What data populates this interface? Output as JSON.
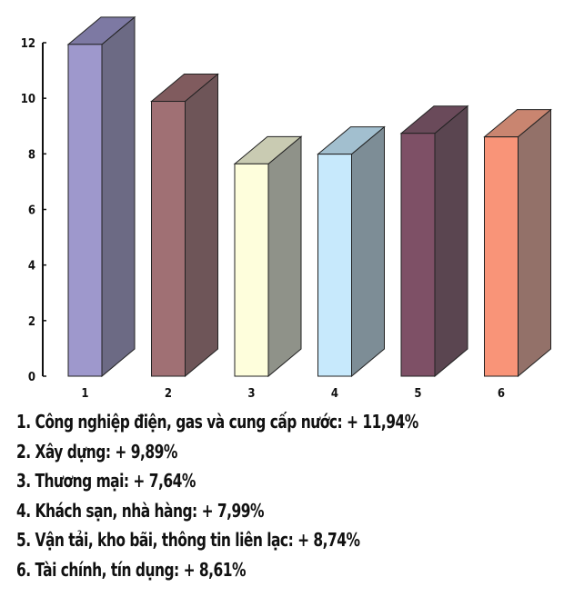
{
  "chart_data": {
    "type": "bar",
    "categories": [
      "1",
      "2",
      "3",
      "4",
      "5",
      "6"
    ],
    "values": [
      11.94,
      9.89,
      7.64,
      7.99,
      8.74,
      8.61
    ],
    "ylim": [
      0,
      12
    ],
    "yticks": [
      "0",
      "2",
      "4",
      "6",
      "8",
      "10",
      "12"
    ],
    "grid": false,
    "colors": [
      {
        "front": "#9e98cc",
        "side": "#6c6a84",
        "top": "#7d79a3"
      },
      {
        "front": "#a07074",
        "side": "#6e5558",
        "top": "#805b5e"
      },
      {
        "front": "#fefedc",
        "side": "#8f9289",
        "top": "#c9cbb2"
      },
      {
        "front": "#c7e9fc",
        "side": "#7d8d96",
        "top": "#a2bfcf"
      },
      {
        "front": "#7e5066",
        "side": "#5a4550",
        "top": "#6a4a5a"
      },
      {
        "front": "#f99478",
        "side": "#937169",
        "top": "#c98570"
      }
    ]
  },
  "legend": [
    "1. Công nghiệp điện, gas và cung cấp nước: + 11,94%",
    "2. Xây dựng: + 9,89%",
    "3. Thương mại: + 7,64%",
    "4. Khách sạn, nhà hàng: + 7,99%",
    "5. Vận tải, kho bãi, thông tin liên lạc: + 8,74%",
    "6. Tài chính, tín dụng: + 8,61%"
  ]
}
